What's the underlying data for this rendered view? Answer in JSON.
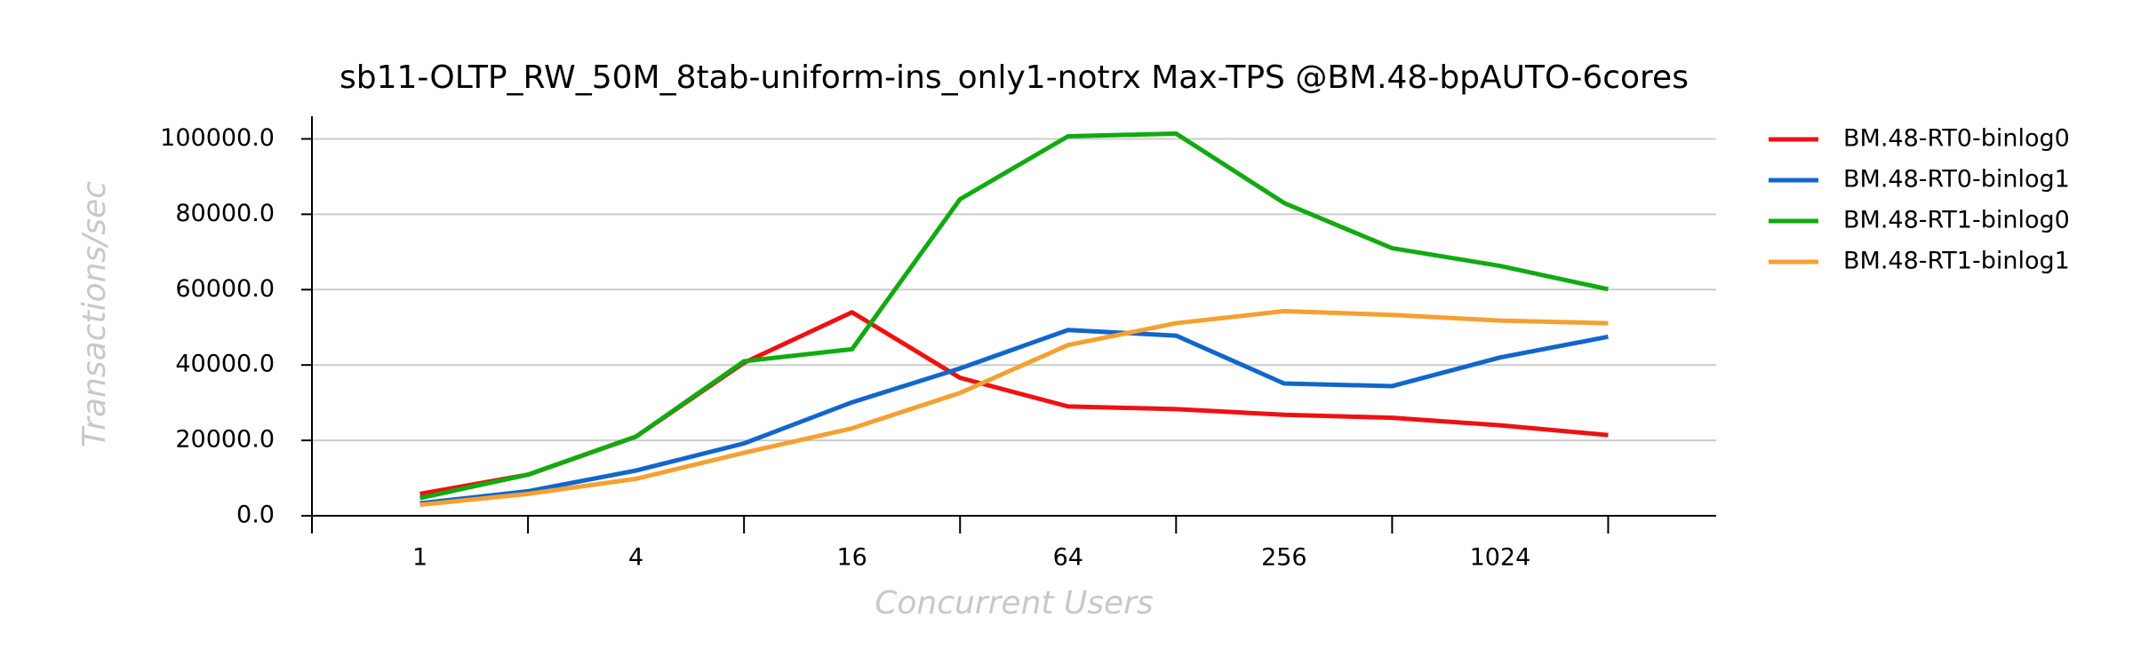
{
  "chart_data": {
    "type": "line",
    "title": "sb11-OLTP_RW_50M_8tab-uniform-ins_only1-notrx Max-TPS @BM.48-bpAUTO-6cores",
    "x_label": "Concurrent Users",
    "y_label": "Transactions/sec",
    "categories": [
      "1",
      null,
      "4",
      null,
      "16",
      null,
      "64",
      null,
      "256",
      null,
      "1024",
      null
    ],
    "ylim": [
      0,
      106000
    ],
    "yticks": [
      {
        "value": 0,
        "label": "0.0"
      },
      {
        "value": 20000,
        "label": "20000.0"
      },
      {
        "value": 40000,
        "label": "40000.0"
      },
      {
        "value": 60000,
        "label": "60000.0"
      },
      {
        "value": 80000,
        "label": "80000.0"
      },
      {
        "value": 100000,
        "label": "100000.0"
      }
    ],
    "grid": true,
    "legend": "right",
    "series": [
      {
        "name": "BM.48-RT0-binlog0",
        "color": "#ee1111",
        "values": [
          5800,
          10900,
          21000,
          40600,
          54000,
          36600,
          29000,
          28300,
          26800,
          26000,
          24000,
          21400
        ]
      },
      {
        "name": "BM.48-RT0-binlog1",
        "color": "#1166cc",
        "values": [
          3300,
          6500,
          12000,
          19200,
          30100,
          39100,
          49300,
          47800,
          35100,
          34400,
          42000,
          47500
        ]
      },
      {
        "name": "BM.48-RT1-binlog0",
        "color": "#11aa11",
        "values": [
          4700,
          10900,
          21000,
          41000,
          44200,
          84000,
          100700,
          101400,
          83000,
          71000,
          66300,
          60100
        ]
      },
      {
        "name": "BM.48-RT1-binlog1",
        "color": "#f5a030",
        "values": [
          2900,
          5800,
          9800,
          16700,
          23200,
          32600,
          45300,
          51100,
          54300,
          53300,
          51800,
          51100
        ]
      }
    ]
  }
}
